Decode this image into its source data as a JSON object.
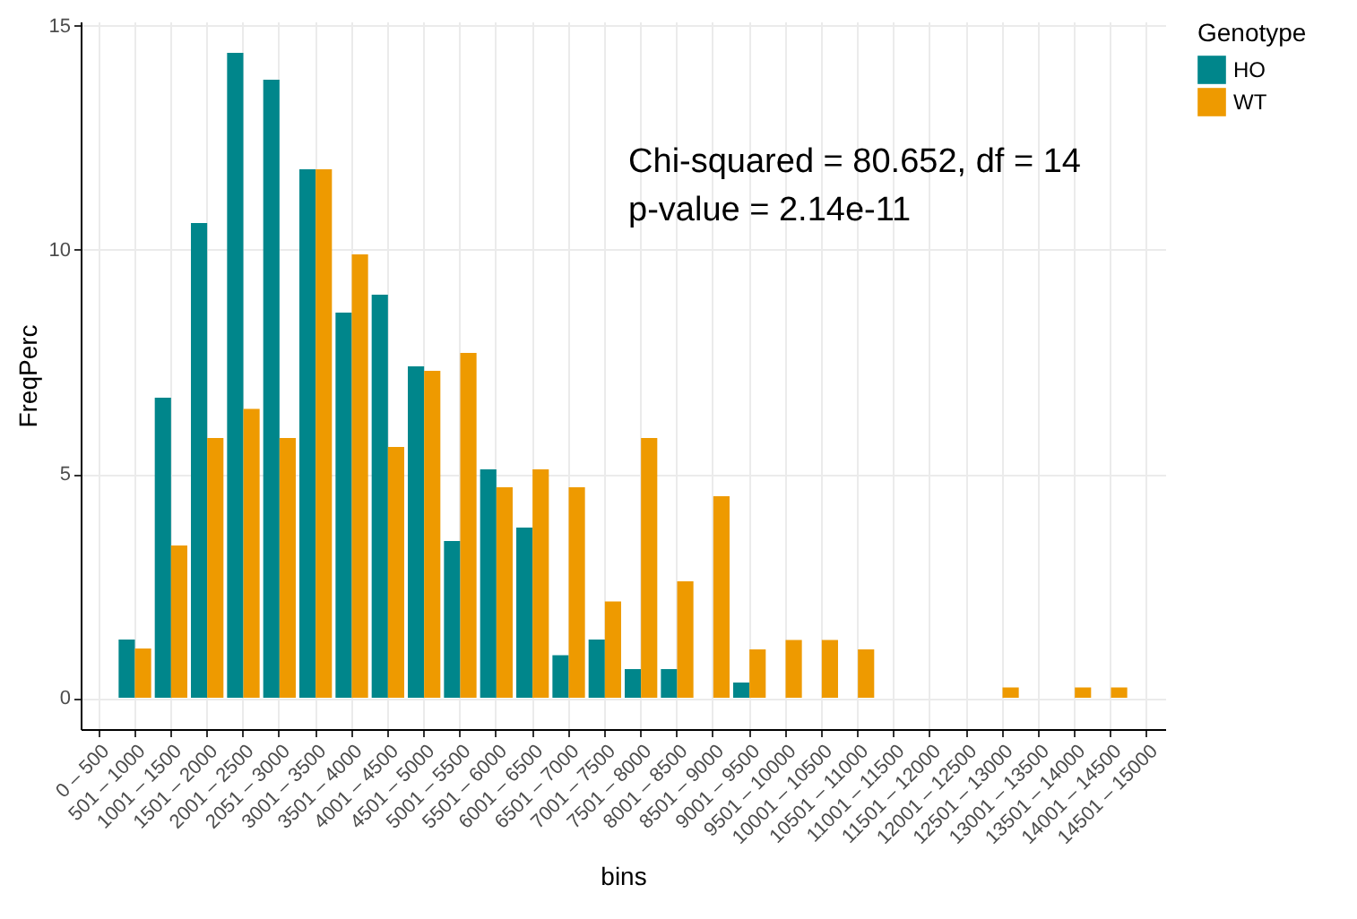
{
  "chart_data": {
    "type": "bar",
    "categories": [
      "0 – 500",
      "501 – 1000",
      "1001 – 1500",
      "1501 – 2000",
      "2001 – 2500",
      "2051 – 3000",
      "3001 – 3500",
      "3501 – 4000",
      "4001 – 4500",
      "4501 – 5000",
      "5001 – 5500",
      "5501 – 6000",
      "6001 – 6500",
      "6501 – 7000",
      "7001 – 7500",
      "7501 – 8000",
      "8001 – 8500",
      "8501 – 9000",
      "9001 – 9500",
      "9501 – 10000",
      "10001 – 10500",
      "10501 – 11000",
      "11001 – 11500",
      "11501 – 12000",
      "12001 – 12500",
      "12501 – 13000",
      "13001 – 13500",
      "13501 – 14000",
      "14001 – 14500",
      "14501 – 15000"
    ],
    "series": [
      {
        "name": "HO",
        "color": "#00868b",
        "values": [
          0,
          1.3,
          6.7,
          10.6,
          14.4,
          13.8,
          11.8,
          8.6,
          9.0,
          7.4,
          3.5,
          5.1,
          3.8,
          0.95,
          1.3,
          0.64,
          0.64,
          0,
          0.34,
          0,
          0,
          0,
          0,
          0,
          0,
          0,
          0,
          0,
          0,
          0
        ]
      },
      {
        "name": "WT",
        "color": "#ee9a00",
        "values": [
          0,
          1.1,
          3.4,
          5.8,
          6.45,
          5.8,
          11.8,
          9.9,
          5.6,
          7.3,
          7.7,
          4.7,
          5.1,
          4.7,
          2.15,
          5.8,
          2.6,
          4.5,
          1.08,
          1.29,
          1.29,
          1.08,
          0,
          0,
          0,
          0.23,
          0,
          0.23,
          0.23,
          0
        ]
      }
    ],
    "xlabel": "bins",
    "ylabel": "FreqPerc",
    "legend_title": "Genotype",
    "ylim": [
      -0.7,
      15.1
    ],
    "yticks": [
      0,
      5,
      10,
      15
    ],
    "annotations": [
      "Chi-squared = 80.652, df = 14",
      "p-value = 2.14e-11"
    ],
    "grid": true,
    "legend": "right"
  }
}
